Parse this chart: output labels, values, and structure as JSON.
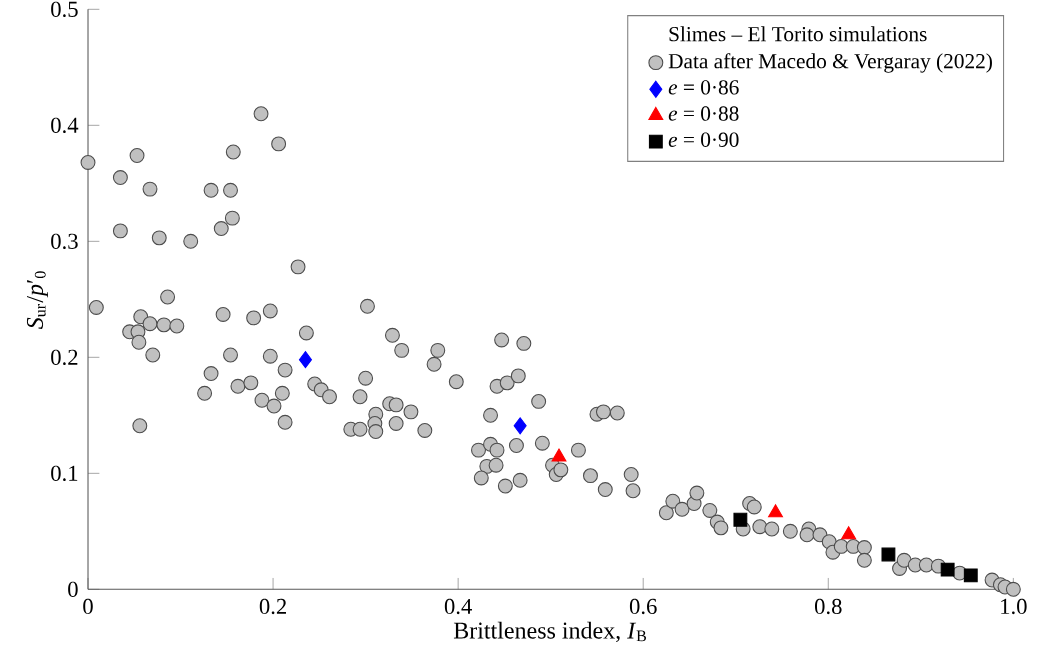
{
  "chart_data": {
    "type": "scatter",
    "xlabel": "Brittleness index, *I*$_{B}$",
    "ylabel": "*S*$_{ur}$/*p*′$_{0}$",
    "legend_title": "Slimes – El Torito simulations",
    "xlim": [
      0,
      1
    ],
    "ylim": [
      0,
      0.5
    ],
    "xticks": [
      0,
      0.2,
      0.4,
      0.6,
      0.8,
      {
        "value": 1.0,
        "label": "1.0"
      }
    ],
    "yticks": [
      0,
      0.1,
      0.2,
      0.3,
      0.4,
      0.5
    ],
    "grid": false,
    "legend": "top right",
    "series": [
      {
        "name": "Data after Macedo & Vergaray (2022)",
        "color": "#c0c0c0",
        "marker": "circle",
        "x": [
          0,
          0.009,
          0.035,
          0.035,
          0.053,
          0.067,
          0.077,
          0.086,
          0.057,
          0.067,
          0.082,
          0.096,
          0.045,
          0.054,
          0.111,
          0.133,
          0.154,
          0.144,
          0.156,
          0.157,
          0.187,
          0.206,
          0.146,
          0.179,
          0.197,
          0.227,
          0.236,
          0.302,
          0.329,
          0.447,
          0.07,
          0.055,
          0.056,
          0.133,
          0.126,
          0.154,
          0.162,
          0.176,
          0.188,
          0.197,
          0.213,
          0.201,
          0.21,
          0.213,
          0.245,
          0.252,
          0.261,
          0.3,
          0.294,
          0.284,
          0.294,
          0.311,
          0.31,
          0.311,
          0.326,
          0.333,
          0.339,
          0.333,
          0.349,
          0.364,
          0.378,
          0.374,
          0.398,
          0.422,
          0.431,
          0.435,
          0.442,
          0.425,
          0.441,
          0.435,
          0.442,
          0.453,
          0.451,
          0.471,
          0.465,
          0.487,
          0.463,
          0.467,
          0.491,
          0.502,
          0.506,
          0.511,
          0.53,
          0.543,
          0.559,
          0.55,
          0.557,
          0.572,
          0.587,
          0.589,
          0.625,
          0.632,
          0.642,
          0.655,
          0.658,
          0.672,
          0.68,
          0.684,
          0.708,
          0.715,
          0.72,
          0.726,
          0.739,
          0.759,
          0.779,
          0.777,
          0.791,
          0.801,
          0.805,
          0.814,
          0.827,
          0.839,
          0.839,
          0.877,
          0.882,
          0.894,
          0.906,
          0.919,
          0.942,
          0.977,
          0.986,
          0.991,
          1.0
        ],
        "values": [
          0.368,
          0.243,
          0.355,
          0.309,
          0.374,
          0.345,
          0.303,
          0.252,
          0.235,
          0.229,
          0.228,
          0.227,
          0.222,
          0.222,
          0.3,
          0.344,
          0.344,
          0.311,
          0.32,
          0.377,
          0.41,
          0.384,
          0.237,
          0.234,
          0.24,
          0.278,
          0.221,
          0.244,
          0.219,
          0.215,
          0.202,
          0.213,
          0.141,
          0.186,
          0.169,
          0.202,
          0.175,
          0.178,
          0.163,
          0.201,
          0.189,
          0.158,
          0.169,
          0.144,
          0.177,
          0.172,
          0.166,
          0.182,
          0.166,
          0.138,
          0.138,
          0.151,
          0.143,
          0.136,
          0.16,
          0.159,
          0.206,
          0.143,
          0.153,
          0.137,
          0.206,
          0.194,
          0.179,
          0.12,
          0.106,
          0.125,
          0.12,
          0.096,
          0.107,
          0.15,
          0.175,
          0.178,
          0.089,
          0.212,
          0.184,
          0.162,
          0.124,
          0.094,
          0.126,
          0.107,
          0.099,
          0.103,
          0.12,
          0.098,
          0.086,
          0.151,
          0.153,
          0.152,
          0.099,
          0.085,
          0.066,
          0.076,
          0.069,
          0.074,
          0.083,
          0.068,
          0.058,
          0.053,
          0.052,
          0.074,
          0.071,
          0.054,
          0.052,
          0.05,
          0.052,
          0.047,
          0.047,
          0.041,
          0.032,
          0.037,
          0.037,
          0.036,
          0.025,
          0.018,
          0.025,
          0.021,
          0.021,
          0.02,
          0.014,
          0.008,
          0.004,
          0.002,
          0.0
        ]
      },
      {
        "name": "*e* = 0·86",
        "color": "#0000ff",
        "marker": "diamond",
        "x": [
          0.235,
          0.467
        ],
        "values": [
          0.198,
          0.141
        ]
      },
      {
        "name": "*e* = 0·88",
        "color": "#ff0000",
        "marker": "triangle",
        "x": [
          0.509,
          0.743,
          0.822
        ],
        "values": [
          0.114,
          0.066,
          0.047
        ]
      },
      {
        "name": "*e* = 0·90",
        "color": "#000000",
        "marker": "square",
        "x": [
          0.705,
          0.865,
          0.929,
          0.954
        ],
        "values": [
          0.06,
          0.03,
          0.017,
          0.012
        ]
      }
    ]
  }
}
